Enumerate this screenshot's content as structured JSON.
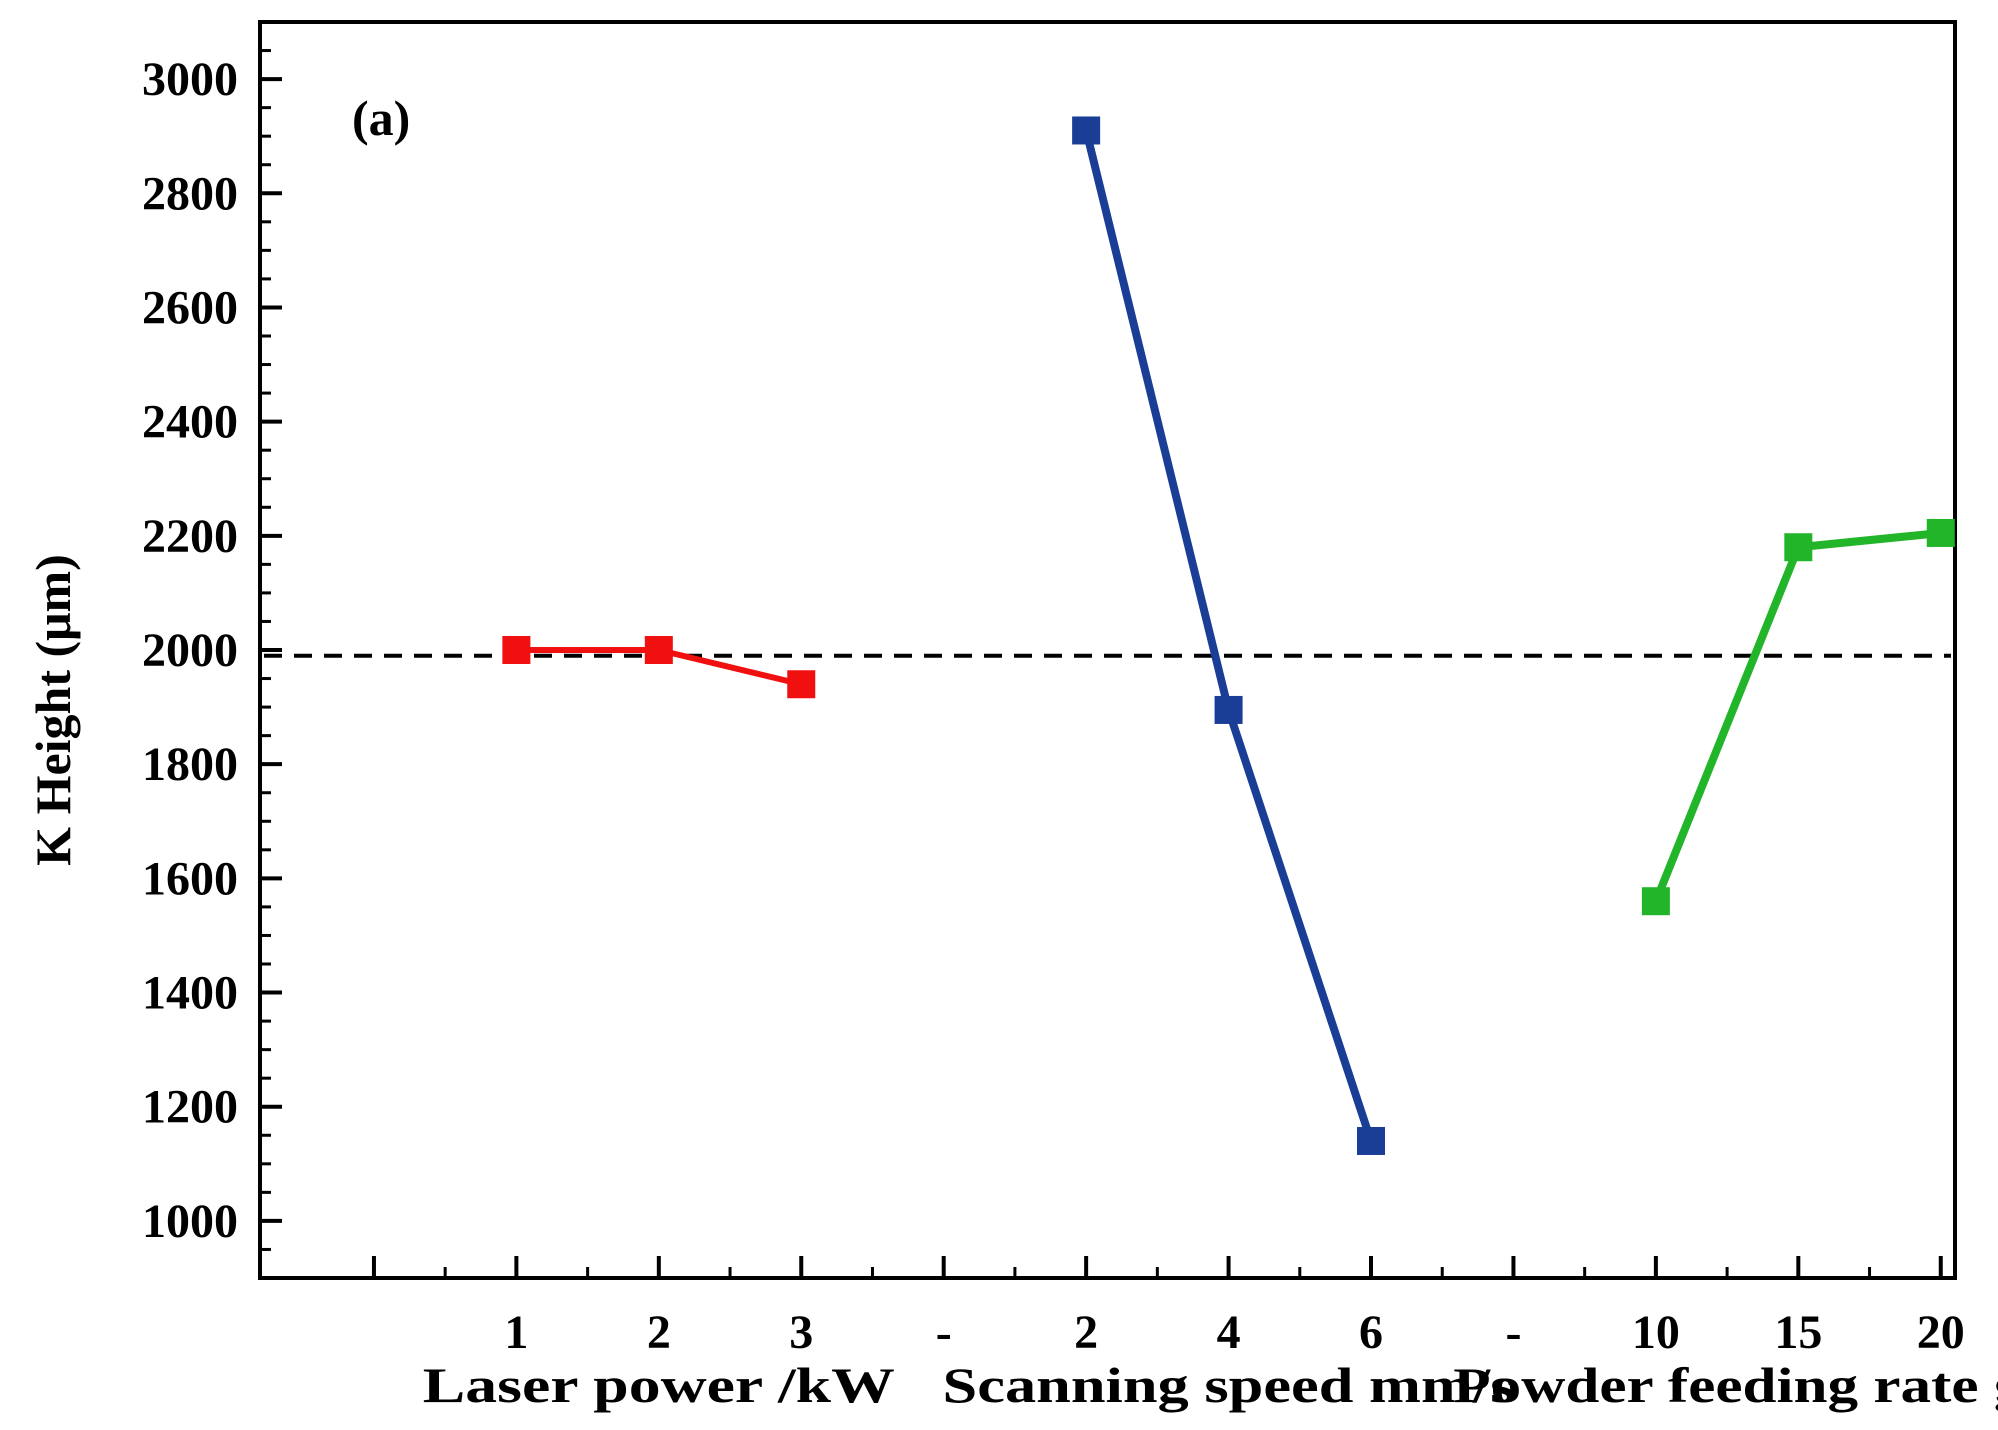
{
  "chart_data": {
    "type": "line",
    "panel_label": "(a)",
    "ylabel": "K Height (μm)",
    "xlabel_groups": [
      "Laser power /kW",
      "Scanning speed mm/s",
      "Powder feeding rate g/min"
    ],
    "x_tick_labels": [
      "1",
      "2",
      "3",
      "-",
      "2",
      "4",
      "6",
      "-",
      "10",
      "15",
      "20"
    ],
    "y_ticks": [
      1000,
      1200,
      1400,
      1600,
      1800,
      2000,
      2200,
      2400,
      2600,
      2800,
      3000
    ],
    "y_tick_labels": [
      "1000",
      "1200",
      "1400",
      "1600",
      "1800",
      "2000",
      "2200",
      "2400",
      "2600",
      "2800",
      "3000"
    ],
    "ylim": [
      900,
      3100
    ],
    "xlim": [
      -0.8,
      11.1
    ],
    "reference_line": {
      "y": 1990,
      "style": "dashed",
      "color": "#000000"
    },
    "series": [
      {
        "name": "Laser power /kW",
        "color": "#f01010",
        "x": [
          1,
          2,
          3
        ],
        "categories": [
          "1",
          "2",
          "3"
        ],
        "values": [
          2000,
          2000,
          1940
        ]
      },
      {
        "name": "Scanning speed mm/s",
        "color": "#1a3e96",
        "x": [
          5,
          6,
          7
        ],
        "categories": [
          "2",
          "4",
          "6"
        ],
        "values": [
          2910,
          1895,
          1140
        ]
      },
      {
        "name": "Powder feeding rate g/min",
        "color": "#22b52a",
        "x": [
          9,
          10,
          11
        ],
        "categories": [
          "10",
          "15",
          "20"
        ],
        "values": [
          1560,
          2180,
          2205
        ]
      }
    ],
    "grid": false
  }
}
